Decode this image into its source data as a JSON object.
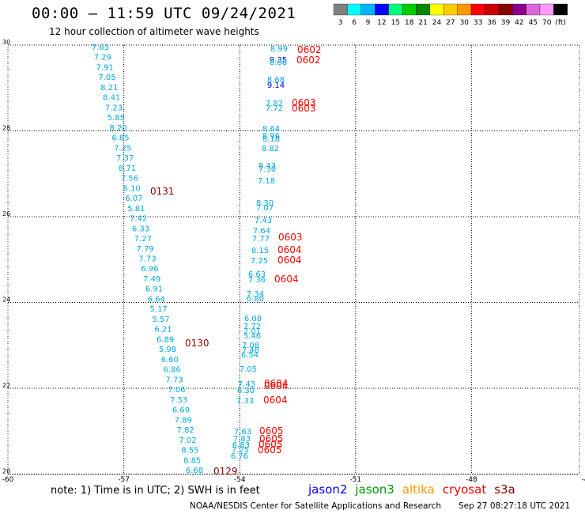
{
  "header": {
    "title": "00:00 – 11:59 UTC 09/24/2021",
    "subtitle": "12 hour collection of altimeter wave heights"
  },
  "colorbar": {
    "colors": [
      "#808080",
      "#00ffff",
      "#00b4ff",
      "#0000ff",
      "#00ff7f",
      "#00cc00",
      "#008800",
      "#ffff00",
      "#ffcc00",
      "#ff9900",
      "#ff0000",
      "#cc0000",
      "#880000",
      "#8b008b",
      "#dd66dd",
      "#ff99ff",
      "#000000"
    ],
    "labels": [
      "3",
      "6",
      "9",
      "12",
      "15",
      "18",
      "21",
      "24",
      "27",
      "30",
      "33",
      "36",
      "39",
      "42",
      "45",
      "70",
      "(ft)"
    ]
  },
  "map_axes": {
    "lon_ticks": [
      "-60",
      "-57",
      "-54",
      "-51",
      "-48",
      "-45"
    ],
    "lat_ticks": [
      "30",
      "28",
      "26",
      "24",
      "22",
      "20"
    ]
  },
  "track_a": {
    "color": "#00aadd",
    "values": [
      "7.63",
      "7.29",
      "7.91",
      "7.05",
      "8.21",
      "8.41",
      "7.23",
      "5.85",
      "8.20",
      "6.85",
      "7.25",
      "7.37",
      "8.71",
      "7.56",
      "6.10",
      "6.07",
      "5.81",
      "7.42",
      "6.33",
      "7.27",
      "7.79",
      "7.73",
      "6.96",
      "7.49",
      "6.91",
      "6.64",
      "5.17",
      "5.57",
      "6.21",
      "6.89",
      "5.98",
      "6.60",
      "6.86",
      "7.73",
      "7.06",
      "7.53",
      "6.69",
      "7.89",
      "7.82",
      "7.02",
      "8.55",
      "8.85",
      "6.68"
    ],
    "tags": [
      {
        "text": "0131",
        "color": "#880000"
      },
      {
        "text": "0130",
        "color": "#880000"
      },
      {
        "text": "0129",
        "color": "#880000"
      }
    ]
  },
  "track_b": {
    "values": [
      {
        "v": "8.99",
        "c": "#00aadd"
      },
      {
        "v": "9.35",
        "c": "#0000ff"
      },
      {
        "v": "8.88",
        "c": "#00aadd"
      },
      {
        "v": "8.68",
        "c": "#00aadd"
      },
      {
        "v": "9.14",
        "c": "#0000ff"
      },
      {
        "v": "7.82",
        "c": "#00aadd"
      },
      {
        "v": "7.72",
        "c": "#00aadd"
      },
      {
        "v": "8.64",
        "c": "#00aadd"
      },
      {
        "v": "8.96",
        "c": "#00aadd"
      },
      {
        "v": "8.18",
        "c": "#00aadd"
      },
      {
        "v": "8.82",
        "c": "#00aadd"
      },
      {
        "v": "8.43",
        "c": "#00aadd"
      },
      {
        "v": "7.30",
        "c": "#00aadd"
      },
      {
        "v": "7.18",
        "c": "#00aadd"
      },
      {
        "v": "8.30",
        "c": "#00aadd"
      },
      {
        "v": "7.07",
        "c": "#00aadd"
      },
      {
        "v": "7.43",
        "c": "#00aadd"
      },
      {
        "v": "7.64",
        "c": "#00aadd"
      },
      {
        "v": "7.77",
        "c": "#00aadd"
      },
      {
        "v": "8.15",
        "c": "#00aadd"
      },
      {
        "v": "7.25",
        "c": "#00aadd"
      },
      {
        "v": "6.63",
        "c": "#00aadd"
      },
      {
        "v": "7.36",
        "c": "#00aadd"
      },
      {
        "v": "7.34",
        "c": "#00aadd"
      },
      {
        "v": "6.80",
        "c": "#00aadd"
      },
      {
        "v": "6.08",
        "c": "#00aadd"
      },
      {
        "v": "7.72",
        "c": "#00aadd"
      },
      {
        "v": "7.01",
        "c": "#00aadd"
      },
      {
        "v": "5.46",
        "c": "#00aadd"
      },
      {
        "v": "7.08",
        "c": "#00aadd"
      },
      {
        "v": "7.48",
        "c": "#00aadd"
      },
      {
        "v": "6.54",
        "c": "#00aadd"
      },
      {
        "v": "7.05",
        "c": "#00aadd"
      },
      {
        "v": "7.43",
        "c": "#00aadd"
      },
      {
        "v": "6.30",
        "c": "#00aadd"
      },
      {
        "v": "7.33",
        "c": "#00aadd"
      },
      {
        "v": "7.63",
        "c": "#00aadd"
      },
      {
        "v": "7.83",
        "c": "#00aadd"
      },
      {
        "v": "6.83",
        "c": "#00aadd"
      },
      {
        "v": "7.25",
        "c": "#00aadd"
      },
      {
        "v": "6.76",
        "c": "#00aadd"
      }
    ],
    "tags": [
      {
        "text": "0602",
        "color": "#ff0000"
      },
      {
        "text": "0602",
        "color": "#ff0000"
      },
      {
        "text": "0603",
        "color": "#ff0000"
      },
      {
        "text": "0603",
        "color": "#ff0000"
      },
      {
        "text": "0603",
        "color": "#ff0000"
      },
      {
        "text": "0604",
        "color": "#ff0000"
      },
      {
        "text": "0604",
        "color": "#ff0000"
      },
      {
        "text": "0604",
        "color": "#ff0000"
      },
      {
        "text": "0604",
        "color": "#ff0000"
      },
      {
        "text": "0604",
        "color": "#ff0000"
      },
      {
        "text": "0604",
        "color": "#ff0000"
      },
      {
        "text": "0605",
        "color": "#ff0000"
      },
      {
        "text": "0605",
        "color": "#ff0000"
      },
      {
        "text": "0605",
        "color": "#ff0000"
      },
      {
        "text": "0605",
        "color": "#ff0000"
      }
    ]
  },
  "footer": {
    "note": "note: 1) Time is in UTC; 2) SWH is in feet",
    "legend": [
      {
        "label": "jason2",
        "color": "#0000ff"
      },
      {
        "label": "jason3",
        "color": "#009900"
      },
      {
        "label": "altika",
        "color": "#ff9900"
      },
      {
        "label": "cryosat",
        "color": "#ff0000"
      },
      {
        "label": "s3a",
        "color": "#880000"
      }
    ],
    "credit": "NOAA/NESDIS Center for Satellite Applications and Research",
    "timestamp": "Sep 27 08:27:18 UTC 2021"
  }
}
